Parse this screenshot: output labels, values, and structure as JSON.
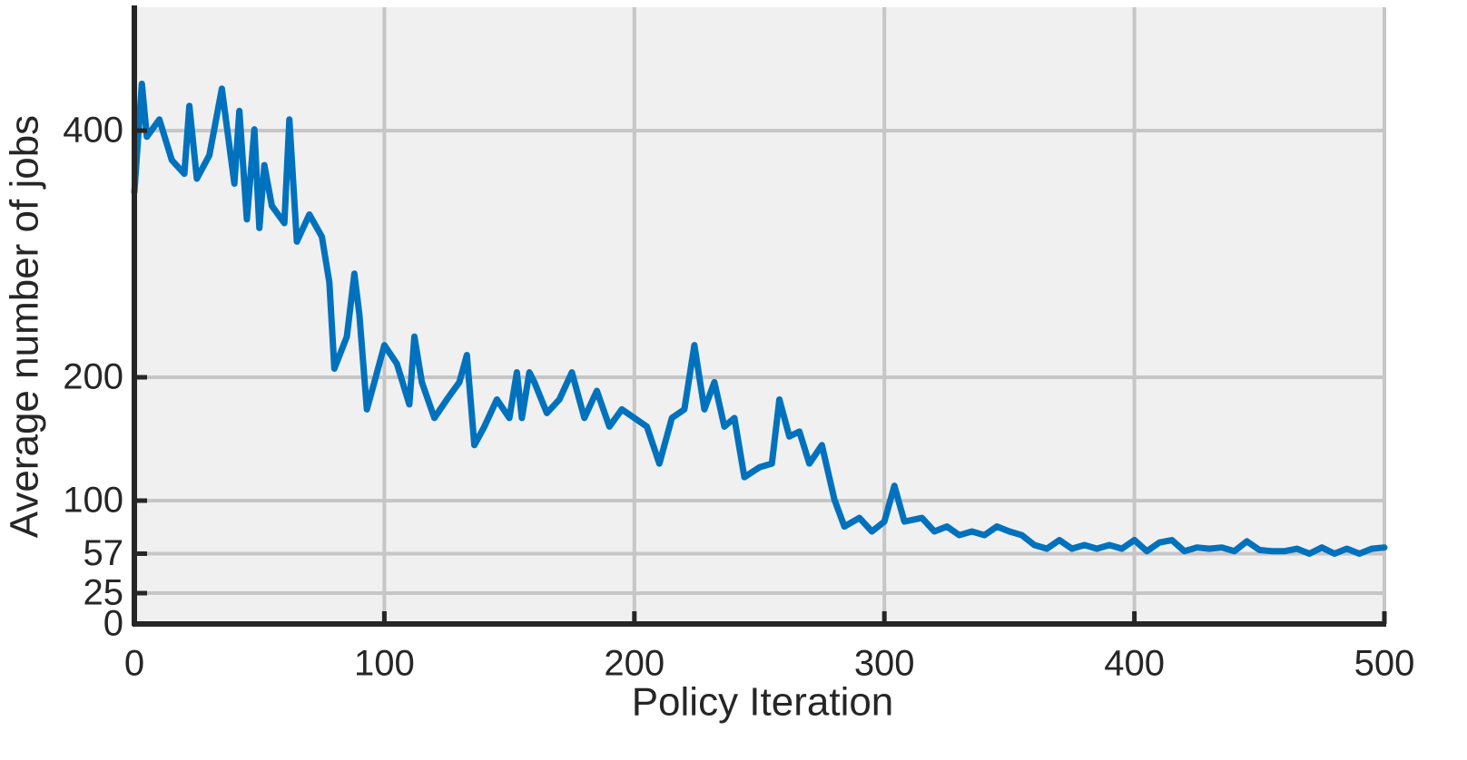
{
  "chart_data": {
    "type": "line",
    "xlabel": "Policy Iteration",
    "ylabel": "Average number of jobs",
    "xlim": [
      0,
      500
    ],
    "xticks": [
      0,
      100,
      200,
      300,
      400,
      500
    ],
    "ylim": [
      0,
      500
    ],
    "yticks": [
      0,
      25,
      57,
      100,
      200,
      400
    ],
    "grid": true,
    "x": [
      0,
      3,
      5,
      10,
      15,
      20,
      22,
      25,
      30,
      35,
      40,
      42,
      45,
      48,
      50,
      52,
      55,
      60,
      62,
      65,
      70,
      75,
      78,
      80,
      85,
      88,
      90,
      93,
      96,
      100,
      105,
      110,
      112,
      115,
      120,
      125,
      130,
      133,
      136,
      140,
      145,
      150,
      153,
      155,
      158,
      160,
      165,
      170,
      175,
      180,
      185,
      190,
      195,
      200,
      205,
      210,
      215,
      220,
      224,
      228,
      232,
      236,
      240,
      244,
      250,
      255,
      258,
      262,
      266,
      270,
      275,
      280,
      284,
      290,
      295,
      300,
      304,
      308,
      315,
      320,
      325,
      330,
      335,
      340,
      345,
      350,
      355,
      360,
      365,
      370,
      375,
      380,
      385,
      390,
      395,
      400,
      405,
      410,
      415,
      420,
      425,
      430,
      435,
      440,
      445,
      450,
      455,
      460,
      465,
      470,
      475,
      480,
      485,
      490,
      495,
      500
    ],
    "series": [
      {
        "name": "Average number of jobs",
        "color": "#0072bd",
        "values": [
          350,
          438,
          395,
          409,
          376,
          365,
          420,
          361,
          380,
          434,
          357,
          416,
          328,
          401,
          321,
          372,
          339,
          325,
          409,
          310,
          332,
          314,
          277,
          207,
          233,
          284,
          251,
          174,
          196,
          226,
          211,
          178,
          233,
          196,
          167,
          182,
          196,
          218,
          145,
          160,
          182,
          167,
          204,
          167,
          204,
          196,
          171,
          182,
          204,
          167,
          189,
          160,
          174,
          167,
          160,
          130,
          167,
          174,
          226,
          174,
          196,
          160,
          167,
          119,
          127,
          130,
          182,
          152,
          156,
          130,
          145,
          101,
          79,
          86,
          75,
          83,
          112,
          83,
          86,
          75,
          79,
          72,
          75,
          72,
          79,
          75,
          72,
          64,
          61,
          68,
          61,
          64,
          61,
          64,
          61,
          68,
          59,
          66,
          68,
          59,
          62,
          61,
          62,
          59,
          67,
          60,
          59,
          59,
          61,
          57,
          62,
          57,
          61,
          57,
          61,
          62
        ]
      }
    ]
  }
}
